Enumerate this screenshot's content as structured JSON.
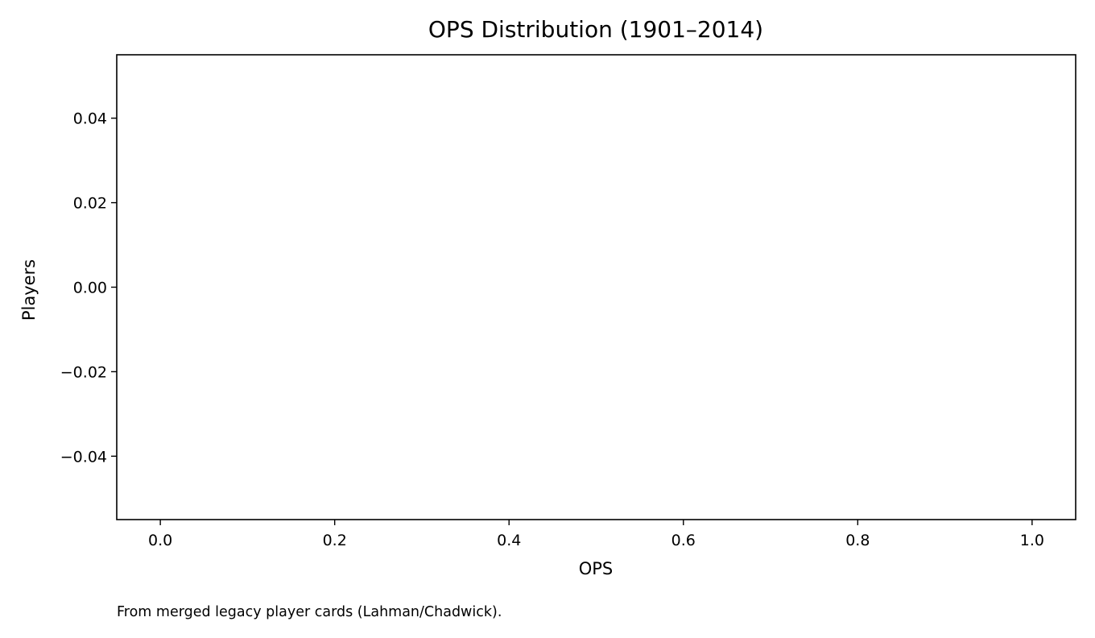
{
  "chart_data": {
    "type": "bar",
    "title": "OPS Distribution (1901–2014)",
    "xlabel": "OPS",
    "ylabel": "Players",
    "x_ticks": [
      0.0,
      0.2,
      0.4,
      0.6,
      0.8,
      1.0
    ],
    "x_tick_labels": [
      "0.0",
      "0.2",
      "0.4",
      "0.6",
      "0.8",
      "1.0"
    ],
    "y_ticks": [
      0.04,
      0.02,
      0.0,
      -0.02,
      -0.04
    ],
    "y_tick_labels": [
      "0.04",
      "0.02",
      "0.00",
      "−0.02",
      "−0.04"
    ],
    "xlim": [
      -0.05,
      1.05
    ],
    "ylim": [
      -0.055,
      0.055
    ],
    "bins": [],
    "counts": [],
    "grid": false,
    "legend": null,
    "caption": "From merged legacy player cards (Lahman/Chadwick)."
  },
  "colors": {
    "axis": "#000000",
    "text": "#000000",
    "background": "#ffffff"
  }
}
